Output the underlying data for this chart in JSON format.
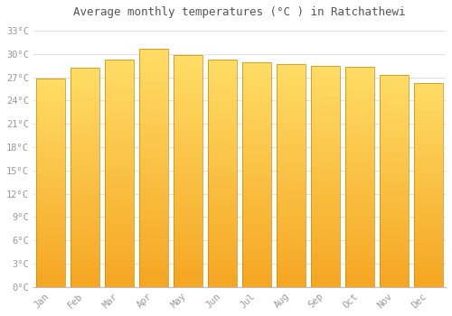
{
  "title": "Average monthly temperatures (°C ) in Ratchathewi",
  "categories": [
    "Jan",
    "Feb",
    "Mar",
    "Apr",
    "May",
    "Jun",
    "Jul",
    "Aug",
    "Sep",
    "Oct",
    "Nov",
    "Dec"
  ],
  "values": [
    26.8,
    28.2,
    29.3,
    30.7,
    29.8,
    29.3,
    28.9,
    28.7,
    28.5,
    28.3,
    27.3,
    26.3
  ],
  "bar_color_bottom": "#F5A623",
  "bar_color_top": "#FFD966",
  "bar_edge_color": "#CC8800",
  "background_color": "#FFFFFF",
  "grid_color": "#E0E0E0",
  "text_color": "#999999",
  "title_color": "#555555",
  "ylim": [
    0,
    34
  ],
  "yticks": [
    0,
    3,
    6,
    9,
    12,
    15,
    18,
    21,
    24,
    27,
    30,
    33
  ],
  "bar_width": 0.85
}
